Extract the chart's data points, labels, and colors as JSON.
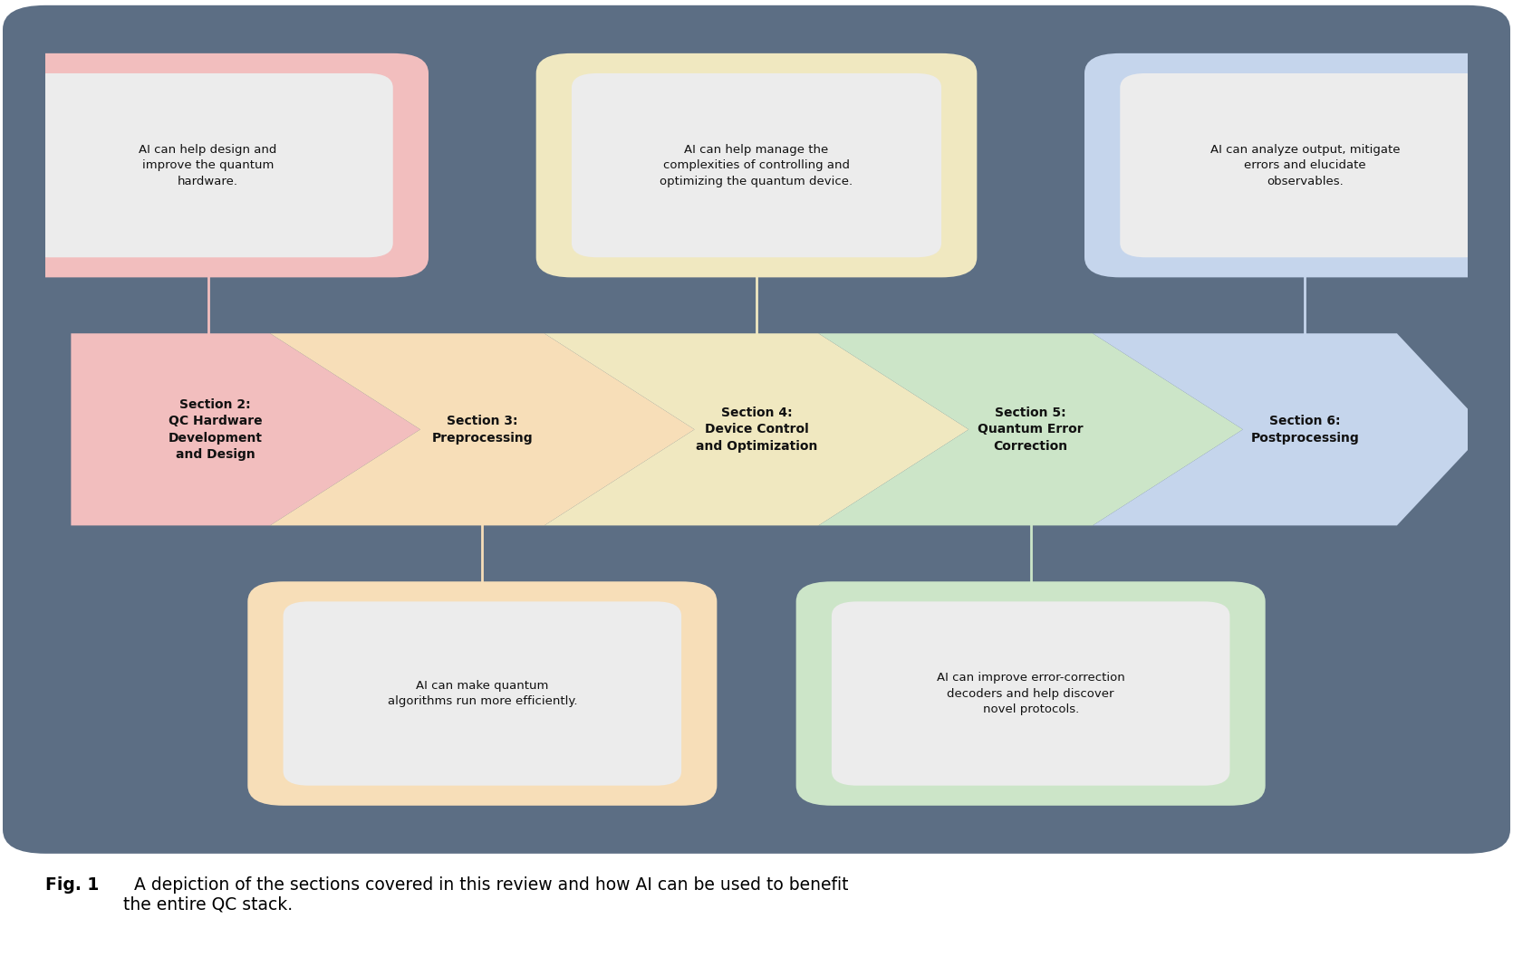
{
  "bg_color": "#5c6e84",
  "fig_bg": "#ffffff",
  "arrow_sections": [
    {
      "label": "Section 2:\nQC Hardware\nDevelopment\nand Design",
      "color": "#f2bebe",
      "x": 0
    },
    {
      "label": "Section 3:\nPreprocessing",
      "color": "#f7deb8",
      "x": 1
    },
    {
      "label": "Section 4:\nDevice Control\nand Optimization",
      "color": "#f0e8c0",
      "x": 2
    },
    {
      "label": "Section 5:\nQuantum Error\nCorrection",
      "color": "#cce5c8",
      "x": 3
    },
    {
      "label": "Section 6:\nPostprocessing",
      "color": "#c5d5ec",
      "x": 4
    }
  ],
  "top_boxes": [
    {
      "section_idx": 0,
      "text": "AI can help design and\nimprove the quantum\nhardware.",
      "border_color": "#f2bebe",
      "inner_color": "#ececec"
    },
    {
      "section_idx": 2,
      "text": "AI can help manage the\ncomplexities of controlling and\noptimizing the quantum device.",
      "border_color": "#f0e8c0",
      "inner_color": "#ececec"
    },
    {
      "section_idx": 4,
      "text": "AI can analyze output, mitigate\nerrors and elucidate\nobservables.",
      "border_color": "#c5d5ec",
      "inner_color": "#ececec"
    }
  ],
  "bottom_boxes": [
    {
      "section_idx": 1,
      "text": "AI can make quantum\nalgorithms run more efficiently.",
      "border_color": "#f7deb8",
      "inner_color": "#ececec"
    },
    {
      "section_idx": 3,
      "text": "AI can improve error-correction\ndecoders and help discover\nnovel protocols.",
      "border_color": "#cce5c8",
      "inner_color": "#ececec"
    }
  ],
  "caption_bold": "Fig. 1",
  "caption_text": "  A depiction of the sections covered in this review and how AI can be used to benefit\nthe entire QC stack."
}
